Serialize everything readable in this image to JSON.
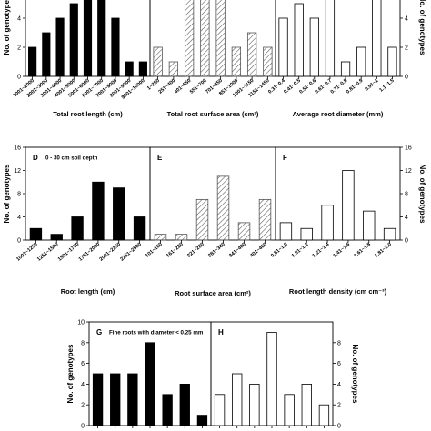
{
  "hatch_color": "#555555",
  "y_axis_label": "No. of genotypes",
  "chart_data": [
    {
      "id": "A",
      "letter": "",
      "annotation": "",
      "type": "bar",
      "style": "solid",
      "categories": [
        "1001~2000",
        "2001~3000",
        "3001~4000",
        "4001~5000",
        "5001~6000",
        "6001~7000",
        "7001~8000",
        "8001~9000",
        "9001~10000"
      ],
      "values": [
        2,
        3,
        4,
        5,
        7,
        6,
        4,
        1,
        1
      ],
      "xlabel": "Total root length (cm)",
      "ylabel_left": "No. of genotypes",
      "ylabel_right": "",
      "ylim": [
        0,
        7
      ],
      "left_ticks": [
        0,
        2,
        4,
        6
      ],
      "right_ticks": []
    },
    {
      "id": "B",
      "letter": "",
      "annotation": "",
      "type": "bar",
      "style": "hatched",
      "categories": [
        "1~250",
        "251~400",
        "401~550",
        "551~700",
        "701~850",
        "851~1000",
        "1001~1150",
        "1151~1450"
      ],
      "values": [
        2,
        1,
        7,
        6,
        7,
        2,
        3,
        2
      ],
      "xlabel": "Total root surface area (cm²)",
      "ylabel_left": "",
      "ylabel_right": "",
      "ylim": [
        0,
        7
      ],
      "left_ticks": [],
      "right_ticks": []
    },
    {
      "id": "C",
      "letter": "",
      "annotation": "",
      "type": "bar",
      "style": "open",
      "categories": [
        "0.31~0.4",
        "0.41~0.5",
        "0.51~0.6",
        "0.61~0.7",
        "0.71~0.8",
        "0.81~0.9",
        "0.91~1",
        "1.1~1.5"
      ],
      "values": [
        4,
        5,
        4,
        6,
        1,
        2,
        6,
        2
      ],
      "xlabel": "Average root diameter (mm)",
      "ylabel_left": "",
      "ylabel_right": "No. of genotypes",
      "ylim": [
        0,
        7
      ],
      "left_ticks": [],
      "right_ticks": [
        0,
        2,
        4,
        6
      ]
    },
    {
      "id": "D",
      "letter": "D",
      "annotation": "0 - 30 cm soil depth",
      "type": "bar",
      "style": "solid",
      "categories": [
        "1001~1250",
        "1251~1500",
        "1501~1750",
        "1751~2000",
        "2001~2250",
        "2251~2500"
      ],
      "values": [
        2,
        1,
        4,
        10,
        9,
        4
      ],
      "xlabel": "Root length (cm)",
      "ylabel_left": "No. of genotypes",
      "ylabel_right": "",
      "ylim": [
        0,
        16
      ],
      "left_ticks": [
        0,
        4,
        8,
        12,
        16
      ],
      "right_ticks": []
    },
    {
      "id": "E",
      "letter": "E",
      "annotation": "",
      "type": "bar",
      "style": "hatched",
      "categories": [
        "101~160",
        "161~220",
        "221~280",
        "281~340",
        "341~400",
        "401~460"
      ],
      "values": [
        1,
        1,
        7,
        11,
        3,
        7
      ],
      "xlabel": "Root surface area (cm²)",
      "ylabel_left": "",
      "ylabel_right": "",
      "ylim": [
        0,
        16
      ],
      "left_ticks": [],
      "right_ticks": []
    },
    {
      "id": "F",
      "letter": "F",
      "annotation": "",
      "type": "bar",
      "style": "open",
      "categories": [
        "0.81~1.0",
        "1.01~1.2",
        "1.21~1.4",
        "1.41~1.6",
        "1.61~1.8",
        "1.81~2.0"
      ],
      "values": [
        3,
        2,
        6,
        12,
        5,
        2
      ],
      "xlabel": "Root length density (cm cm⁻³)",
      "ylabel_left": "",
      "ylabel_right": "No. of genotypes",
      "ylim": [
        0,
        16
      ],
      "left_ticks": [],
      "right_ticks": [
        0,
        4,
        8,
        12,
        16
      ]
    },
    {
      "id": "G",
      "letter": "G",
      "annotation": "Fine roots with diameter < 0.25 mm",
      "type": "bar",
      "style": "solid",
      "categories": [
        "",
        "",
        "",
        "",
        "",
        "",
        ""
      ],
      "values": [
        5,
        5,
        5,
        8,
        3,
        4,
        1
      ],
      "xlabel": "",
      "ylabel_left": "No. of genotypes",
      "ylabel_right": "",
      "ylim": [
        0,
        10
      ],
      "left_ticks": [
        0,
        2,
        4,
        6,
        8,
        10
      ],
      "right_ticks": []
    },
    {
      "id": "H",
      "letter": "H",
      "annotation": "",
      "type": "bar",
      "style": "open",
      "categories": [
        "",
        "",
        "",
        "",
        "",
        "",
        ""
      ],
      "values": [
        3,
        5,
        4,
        9,
        3,
        4,
        2
      ],
      "xlabel": "",
      "ylabel_left": "",
      "ylabel_right": "No. of genotypes",
      "ylim": [
        0,
        10
      ],
      "left_ticks": [],
      "right_ticks": [
        0,
        2,
        4,
        6,
        8
      ]
    }
  ]
}
